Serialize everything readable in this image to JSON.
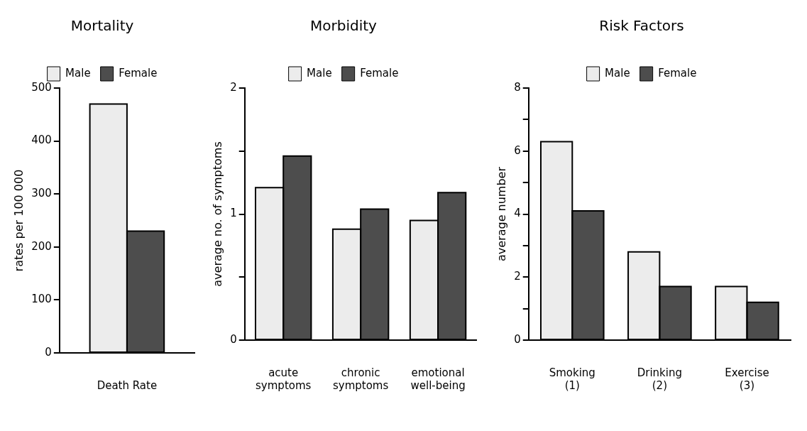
{
  "chart_data": [
    {
      "type": "bar",
      "title": "Mortality",
      "ylabel": "rates per 100 000",
      "categories": [
        "Death Rate"
      ],
      "series": [
        {
          "name": "Male",
          "color": "#ececec",
          "values": [
            470
          ]
        },
        {
          "name": "Female",
          "color": "#4d4d4d",
          "values": [
            230
          ]
        }
      ],
      "ylim": [
        0,
        500
      ],
      "yticks": [
        0,
        100,
        200,
        300,
        400,
        500
      ],
      "legend": "top"
    },
    {
      "type": "bar",
      "title": "Morbidity",
      "ylabel": "average no. of symptoms",
      "categories": [
        "acute\nsymptoms",
        "chronic\nsymptoms",
        "emotional\nwell-being"
      ],
      "series": [
        {
          "name": "Male",
          "color": "#ececec",
          "values": [
            1.21,
            0.88,
            0.95
          ]
        },
        {
          "name": "Female",
          "color": "#4d4d4d",
          "values": [
            1.46,
            1.04,
            1.17
          ]
        }
      ],
      "ylim": [
        0,
        2
      ],
      "yticks": [
        0,
        {
          "value": 0.5,
          "label": null
        },
        1,
        {
          "value": 1.5,
          "label": null
        },
        2
      ],
      "legend": "top"
    },
    {
      "type": "bar",
      "title": "Risk Factors",
      "ylabel": "average number",
      "categories": [
        "Smoking\n(1)",
        "Drinking\n(2)",
        "Exercise\n(3)"
      ],
      "series": [
        {
          "name": "Male",
          "color": "#ececec",
          "values": [
            6.3,
            2.8,
            1.7
          ]
        },
        {
          "name": "Female",
          "color": "#4d4d4d",
          "values": [
            4.1,
            1.7,
            1.2
          ]
        }
      ],
      "ylim": [
        0,
        8
      ],
      "yticks": [
        0,
        {
          "value": 1,
          "label": null
        },
        2,
        {
          "value": 3,
          "label": null
        },
        4,
        {
          "value": 5,
          "label": null
        },
        6,
        {
          "value": 7,
          "label": null
        },
        8
      ],
      "legend": "top"
    }
  ]
}
